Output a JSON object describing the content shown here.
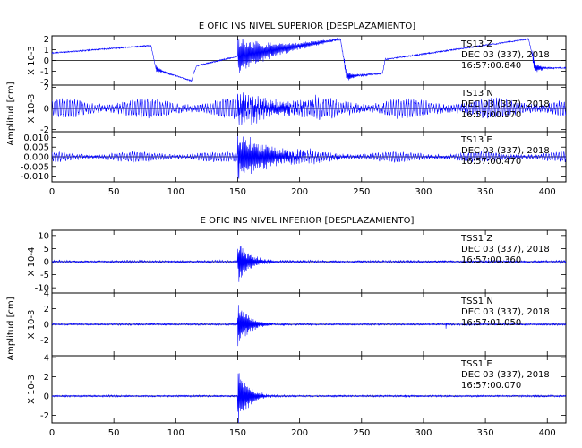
{
  "chart_data": [
    {
      "type": "line",
      "title": "E OFIC INS NIVEL SUPERIOR [DESPLAZAMIENTO]",
      "ylabel": "Amplitud [cm]",
      "x_ticks": [
        0,
        50,
        100,
        150,
        200,
        250,
        300,
        350,
        400
      ],
      "xlim": [
        0,
        415
      ],
      "line_color": "#0000ff",
      "panels": [
        {
          "scale_label": "X 10-3",
          "ylim": [
            -2.3,
            2.3
          ],
          "y_ticks": [
            "-2",
            "-1",
            "0",
            "1",
            "2"
          ],
          "y_tick_values": [
            -2,
            -1,
            0,
            1,
            2
          ],
          "annot": [
            "TS13   Z",
            "DEC 03 (337), 2018",
            "16:57:00.840"
          ],
          "signal": {
            "base_segments": [
              [
                0,
                0.7
              ],
              [
                80,
                1.4
              ],
              [
                84,
                -0.8
              ],
              [
                96,
                -1.3
              ],
              [
                113,
                -1.9
              ],
              [
                114,
                -1.3
              ],
              [
                117,
                -0.5
              ],
              [
                150,
                0.4
              ],
              [
                233,
                2.0
              ],
              [
                238,
                -1.5
              ],
              [
                267,
                -1.2
              ],
              [
                269,
                0.1
              ],
              [
                385,
                2.0
              ],
              [
                390,
                -0.7
              ],
              [
                415,
                -0.7
              ]
            ],
            "noise": 0.06,
            "events": [
              {
                "t0": 150,
                "amp": 1.7,
                "decay": 28,
                "freq": 1.3
              },
              {
                "t0": 236,
                "amp": 0.5,
                "decay": 8,
                "freq": 1.5
              },
              {
                "t0": 388,
                "amp": 0.6,
                "decay": 6,
                "freq": 1.5
              },
              {
                "t0": 84,
                "amp": 0.35,
                "decay": 5,
                "freq": 1.5
              }
            ]
          }
        },
        {
          "scale_label": "X 10-3",
          "ylim": [
            -2.2,
            2.2
          ],
          "y_ticks": [
            "-2",
            "0",
            "2"
          ],
          "y_tick_values": [
            -2,
            0,
            2
          ],
          "annot": [
            "TS13   N",
            "DEC 03 (337), 2018",
            "16:57:00.970"
          ],
          "signal": {
            "base_segments": [
              [
                0,
                0
              ],
              [
                415,
                0
              ]
            ],
            "noise": 0.25,
            "ambient": 0.8,
            "events": [
              {
                "t0": 150,
                "amp": 1.2,
                "decay": 45,
                "freq": 1.4
              }
            ]
          }
        },
        {
          "scale_label": "",
          "ylim": [
            -0.013,
            0.013
          ],
          "y_ticks": [
            "-0.010",
            "-0.005",
            "0.000",
            "0.005",
            "0.010"
          ],
          "y_tick_values": [
            -0.01,
            -0.005,
            0,
            0.005,
            0.01
          ],
          "annot": [
            "TS13   E",
            "DEC 03 (337), 2018",
            "16:57:00.470"
          ],
          "signal": {
            "base_segments": [
              [
                0,
                0
              ],
              [
                415,
                0
              ]
            ],
            "noise": 0.0008,
            "ambient": 0.0022,
            "events": [
              {
                "t0": 150,
                "amp": 0.011,
                "decay": 30,
                "freq": 1.4
              }
            ]
          }
        }
      ]
    },
    {
      "type": "line",
      "title": "E OFIC INS NIVEL INFERIOR [DESPLAZAMIENTO]",
      "ylabel": "Amplitud [cm]",
      "x_ticks": [
        0,
        50,
        100,
        150,
        200,
        250,
        300,
        350,
        400
      ],
      "xlim": [
        0,
        415
      ],
      "line_color": "#0000ff",
      "panels": [
        {
          "scale_label": "X 10-4",
          "ylim": [
            -12,
            12
          ],
          "y_ticks": [
            "-10",
            "-5",
            "0",
            "5",
            "10"
          ],
          "y_tick_values": [
            -10,
            -5,
            0,
            5,
            10
          ],
          "annot": [
            "TSS1   Z",
            "DEC 03 (337), 2018",
            "16:57:00.360"
          ],
          "signal": {
            "base_segments": [
              [
                0,
                0
              ],
              [
                415,
                0
              ]
            ],
            "noise": 0.35,
            "ambient": 0.3,
            "events": [
              {
                "t0": 150,
                "amp": 7.5,
                "decay": 10,
                "freq": 1.5
              }
            ]
          }
        },
        {
          "scale_label": "X 10-3",
          "ylim": [
            -4,
            4
          ],
          "y_ticks": [
            "-2",
            "0",
            "2",
            "4"
          ],
          "y_tick_values": [
            -2,
            0,
            2,
            4
          ],
          "annot": [
            "TSS1   N",
            "DEC 03 (337), 2018",
            "16:57:01.050"
          ],
          "signal": {
            "base_segments": [
              [
                0,
                0
              ],
              [
                415,
                0
              ]
            ],
            "noise": 0.1,
            "ambient": 0.05,
            "events": [
              {
                "t0": 150,
                "amp": 2.8,
                "decay": 9,
                "freq": 1.5
              },
              {
                "t0": 318,
                "amp": 0.6,
                "decay": 0.8,
                "freq": 2
              }
            ]
          }
        },
        {
          "scale_label": "X 10-3",
          "ylim": [
            -2.8,
            4.2
          ],
          "y_ticks": [
            "-2",
            "0",
            "2",
            "4"
          ],
          "y_tick_values": [
            -2,
            0,
            2,
            4
          ],
          "annot": [
            "TSS1   E",
            "DEC 03 (337), 2018",
            "16:57:00.070"
          ],
          "signal": {
            "base_segments": [
              [
                0,
                0
              ],
              [
                415,
                0
              ]
            ],
            "noise": 0.08,
            "ambient": 0.03,
            "events": [
              {
                "t0": 150,
                "amp": 3.0,
                "decay": 8,
                "freq": 1.5
              },
              {
                "t0": 285,
                "amp": 0.2,
                "decay": 2,
                "freq": 2
              }
            ]
          }
        }
      ]
    }
  ]
}
